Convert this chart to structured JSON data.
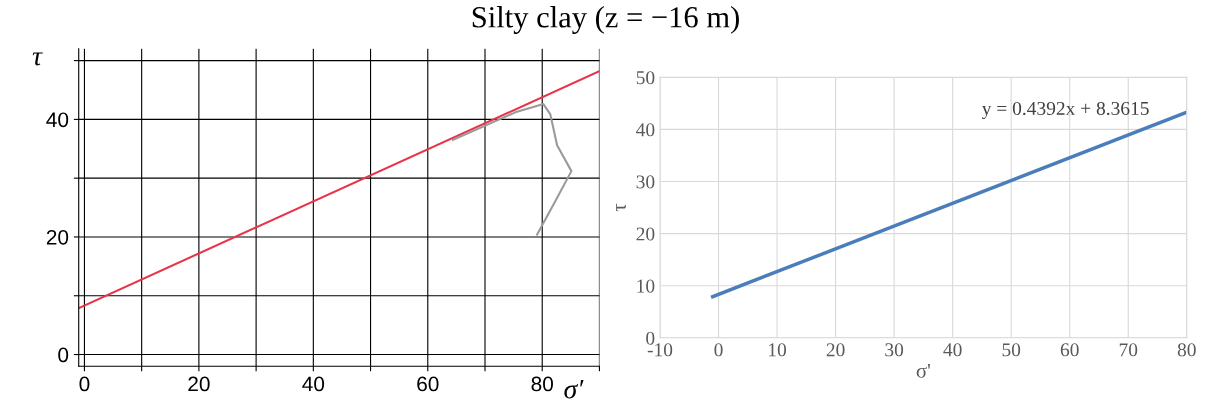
{
  "chart_data": [
    {
      "type": "line",
      "title": "Silty clay (z = −16 m)",
      "xlabel": "σ′",
      "ylabel": "τ",
      "series": [
        {
          "color": "#e8334a",
          "x": [
            -1,
            90
          ],
          "values": [
            7.9,
            48.2
          ]
        },
        {
          "color": "#9a9a9a",
          "x": [
            64.4,
            75.3,
            80.2,
            81.4,
            82.6,
            85.1,
            81.9,
            79.1
          ],
          "values": [
            36.5,
            41.2,
            42.6,
            40.9,
            35.6,
            31.2,
            25.4,
            20.4
          ]
        }
      ],
      "xlim": [
        -1,
        90
      ],
      "ylim": [
        -2,
        52
      ],
      "xticks": [
        0,
        {
          "value": 10,
          "label": null
        },
        20,
        {
          "value": 30,
          "label": null
        },
        40,
        {
          "value": 50,
          "label": null
        },
        60,
        {
          "value": 70,
          "label": null
        },
        80,
        {
          "value": 90,
          "label": null
        }
      ],
      "yticks": [
        0,
        {
          "value": 10,
          "label": null
        },
        20,
        {
          "value": 30,
          "label": null
        },
        40,
        {
          "value": 50,
          "label": null
        }
      ],
      "grid": true,
      "marker": "none",
      "line_style": "solid"
    },
    {
      "type": "line",
      "xlabel": "σ'",
      "ylabel": "τ",
      "series": [
        {
          "color": "#4a7ebb",
          "x": [
            -1,
            80
          ],
          "values": [
            7.9,
            43.3
          ]
        }
      ],
      "annotations": [
        "y = 0.4392x + 8.3615"
      ],
      "xlim": [
        -10,
        80
      ],
      "ylim": [
        0,
        50
      ],
      "xticks": [
        -10,
        0,
        10,
        20,
        30,
        40,
        50,
        60,
        70,
        80
      ],
      "yticks": [
        0,
        10,
        20,
        30,
        40,
        50
      ],
      "grid": true,
      "marker": "none",
      "line_style": "solid"
    }
  ]
}
